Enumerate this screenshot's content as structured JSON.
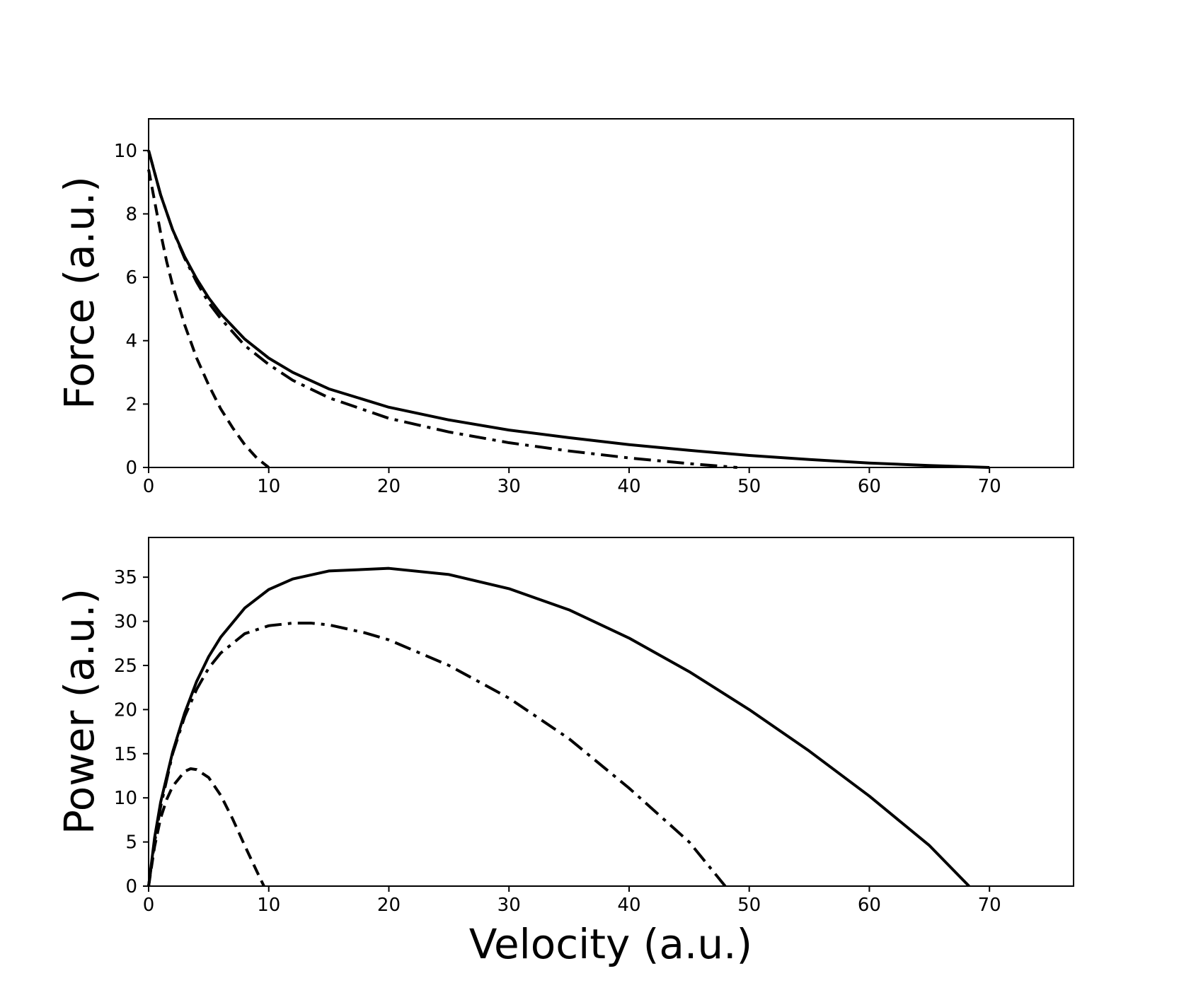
{
  "chart_data": [
    {
      "type": "line",
      "title": "",
      "xlabel": "",
      "ylabel": "Force (a.u.)",
      "xlim": [
        0,
        77
      ],
      "ylim": [
        0,
        11
      ],
      "xticks": [
        0,
        10,
        20,
        30,
        40,
        50,
        60,
        70
      ],
      "yticks": [
        0,
        2,
        4,
        6,
        8,
        10
      ],
      "grid": false,
      "series": [
        {
          "style": "solid",
          "color": "#000000",
          "x": [
            0,
            1,
            2,
            3,
            4,
            5,
            6,
            8,
            10,
            12,
            15,
            20,
            25,
            30,
            35,
            40,
            45,
            50,
            55,
            60,
            65,
            70
          ],
          "y": [
            10.0,
            8.6,
            7.5,
            6.65,
            5.95,
            5.35,
            4.85,
            4.05,
            3.45,
            3.0,
            2.48,
            1.9,
            1.5,
            1.18,
            0.94,
            0.72,
            0.54,
            0.38,
            0.25,
            0.14,
            0.06,
            0.0
          ]
        },
        {
          "style": "dashdot",
          "color": "#000000",
          "x": [
            0,
            1,
            2,
            3,
            4,
            5,
            6,
            8,
            10,
            12,
            15,
            20,
            25,
            30,
            35,
            40,
            45,
            49
          ],
          "y": [
            10.0,
            8.6,
            7.5,
            6.6,
            5.85,
            5.2,
            4.7,
            3.85,
            3.25,
            2.75,
            2.2,
            1.55,
            1.12,
            0.78,
            0.52,
            0.3,
            0.12,
            0.0
          ]
        },
        {
          "style": "dashed",
          "color": "#000000",
          "x": [
            0,
            0.5,
            1,
            1.5,
            2,
            3,
            4,
            5,
            6,
            7,
            8,
            9,
            10
          ],
          "y": [
            9.4,
            8.4,
            7.4,
            6.5,
            5.75,
            4.5,
            3.45,
            2.6,
            1.85,
            1.25,
            0.72,
            0.3,
            0.0
          ]
        }
      ]
    },
    {
      "type": "line",
      "title": "",
      "xlabel": "Velocity (a.u.)",
      "ylabel": "Power (a.u.)",
      "xlim": [
        0,
        77
      ],
      "ylim": [
        0,
        39.5
      ],
      "xticks": [
        0,
        10,
        20,
        30,
        40,
        50,
        60,
        70
      ],
      "yticks": [
        0,
        5,
        10,
        15,
        20,
        25,
        30,
        35
      ],
      "grid": false,
      "series": [
        {
          "style": "solid",
          "color": "#000000",
          "x": [
            0,
            0.5,
            1,
            2,
            3,
            4,
            5,
            6,
            8,
            10,
            12,
            15,
            20,
            25,
            30,
            35,
            40,
            45,
            50,
            55,
            60,
            65,
            68.3
          ],
          "y": [
            0,
            5.5,
            9.5,
            15.2,
            19.6,
            23.2,
            26.0,
            28.2,
            31.5,
            33.6,
            34.8,
            35.7,
            36.0,
            35.3,
            33.7,
            31.3,
            28.1,
            24.3,
            20.0,
            15.3,
            10.2,
            4.6,
            0.0
          ]
        },
        {
          "style": "dashdot",
          "color": "#000000",
          "x": [
            0,
            0.5,
            1,
            2,
            3,
            4,
            5,
            6,
            8,
            10,
            12,
            13.5,
            15,
            18,
            20,
            25,
            30,
            35,
            40,
            45,
            48
          ],
          "y": [
            0,
            5.0,
            9.0,
            15.0,
            19.2,
            22.3,
            24.7,
            26.4,
            28.6,
            29.5,
            29.8,
            29.8,
            29.6,
            28.7,
            27.9,
            25.0,
            21.3,
            16.7,
            11.1,
            5.0,
            0.0
          ]
        },
        {
          "style": "dashed",
          "color": "#000000",
          "x": [
            0,
            0.5,
            1,
            1.5,
            2,
            3,
            3.5,
            4,
            5,
            6,
            7,
            8,
            9,
            9.6
          ],
          "y": [
            0,
            4.5,
            7.7,
            9.8,
            11.3,
            13.0,
            13.3,
            13.2,
            12.3,
            10.3,
            7.6,
            4.6,
            1.7,
            0.0
          ]
        }
      ]
    }
  ]
}
